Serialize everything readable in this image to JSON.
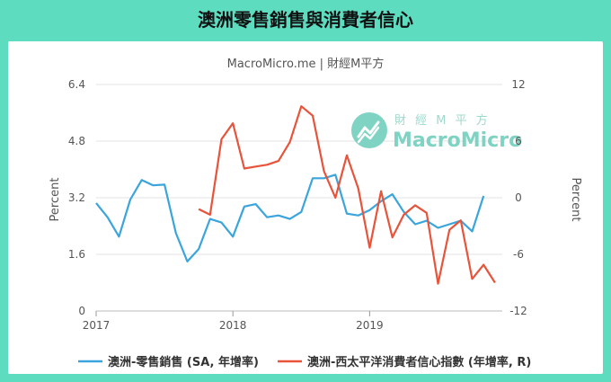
{
  "title": "澳洲零售銷售與消費者信心",
  "subtitle": "MacroMicro.me | 財經M平方",
  "watermark": {
    "cn": "財 經 M 平 方",
    "en": "MacroMicro",
    "icon": "chart-trend-logo-icon"
  },
  "colors": {
    "retail": "#3aa5dc",
    "confidence": "#e8533a",
    "background": "#5ddcc0"
  },
  "chart_data": {
    "type": "line",
    "xlabel": "",
    "ylabel_left": "Percent",
    "ylabel_right": "Percent",
    "ylim_left": [
      0,
      6.4
    ],
    "ylim_right": [
      -12,
      12
    ],
    "x_ticks": [
      "2017",
      "2018",
      "2019"
    ],
    "y_ticks_left": [
      "0",
      "1.6",
      "3.2",
      "4.8",
      "6.4"
    ],
    "y_ticks_right": [
      "-12",
      "-6",
      "0",
      "6",
      "12"
    ],
    "grid": true,
    "legend_position": "bottom",
    "series": [
      {
        "name": "澳洲-零售銷售 (SA, 年增率)",
        "axis": "left",
        "x": [
          "2017-01",
          "2017-02",
          "2017-03",
          "2017-04",
          "2017-05",
          "2017-06",
          "2017-07",
          "2017-08",
          "2017-09",
          "2017-10",
          "2017-11",
          "2017-12",
          "2018-01",
          "2018-02",
          "2018-03",
          "2018-04",
          "2018-05",
          "2018-06",
          "2018-07",
          "2018-08",
          "2018-09",
          "2018-10",
          "2018-11",
          "2018-12",
          "2019-01",
          "2019-02",
          "2019-03",
          "2019-04",
          "2019-05",
          "2019-06",
          "2019-07",
          "2019-08",
          "2019-09",
          "2019-10",
          "2019-11"
        ],
        "values": [
          3.05,
          2.65,
          2.1,
          3.15,
          3.7,
          3.55,
          3.57,
          2.2,
          1.4,
          1.75,
          2.6,
          2.5,
          2.1,
          2.95,
          3.02,
          2.65,
          2.7,
          2.6,
          2.8,
          3.75,
          3.75,
          3.85,
          2.75,
          2.7,
          2.85,
          3.1,
          3.3,
          2.8,
          2.45,
          2.55,
          2.35,
          2.45,
          2.55,
          2.25,
          3.25
        ]
      },
      {
        "name": "澳洲-西太平洋消費者信心指數 (年增率, R)",
        "axis": "right",
        "x": [
          "2017-10",
          "2017-11",
          "2017-12",
          "2018-01",
          "2018-02",
          "2018-03",
          "2018-04",
          "2018-05",
          "2018-06",
          "2018-07",
          "2018-08",
          "2018-09",
          "2018-10",
          "2018-11",
          "2018-12",
          "2019-01",
          "2019-02",
          "2019-03",
          "2019-04",
          "2019-05",
          "2019-06",
          "2019-07",
          "2019-08",
          "2019-09",
          "2019-10",
          "2019-11",
          "2019-12"
        ],
        "values": [
          -1.2,
          -1.8,
          6.2,
          7.9,
          3.1,
          3.3,
          3.5,
          3.9,
          5.9,
          9.7,
          8.7,
          2.8,
          0.0,
          4.5,
          1.0,
          -5.3,
          0.7,
          -4.2,
          -1.8,
          -0.8,
          -1.6,
          -9.1,
          -3.4,
          -2.4,
          -8.6,
          -7.1,
          -9.0
        ]
      }
    ]
  }
}
